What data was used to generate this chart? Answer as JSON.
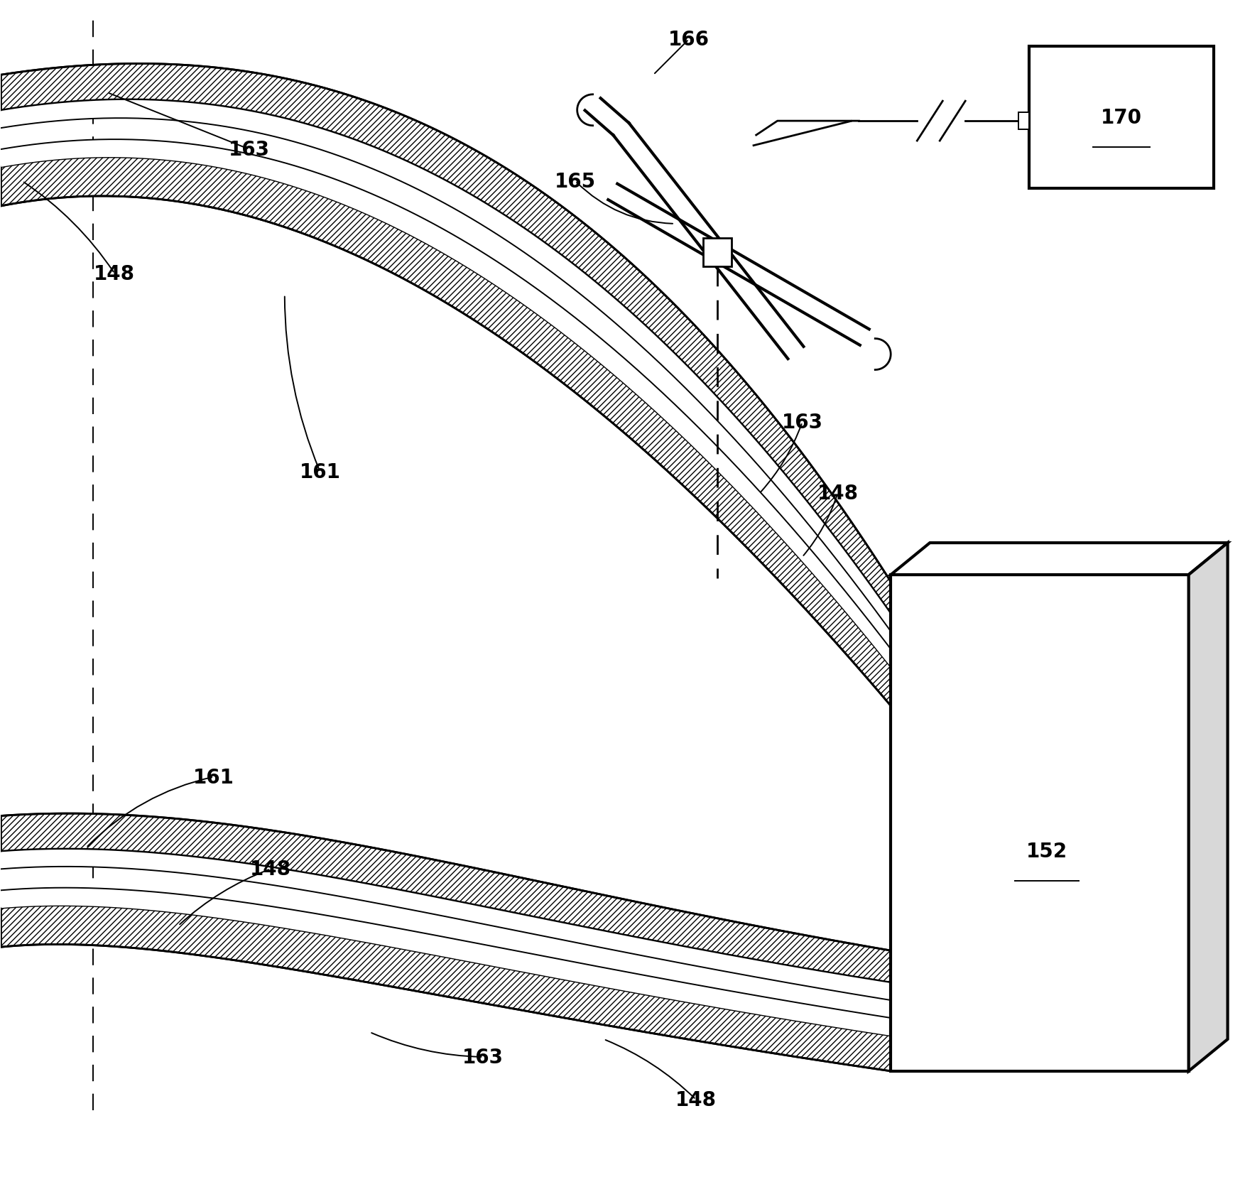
{
  "bg_color": "#ffffff",
  "line_color": "#000000",
  "fig_width": 17.53,
  "fig_height": 16.65,
  "lw": 2.0,
  "lw_thin": 1.4,
  "lw_thick": 3.0,
  "label_fontsize": 20,
  "label_fontweight": "bold"
}
